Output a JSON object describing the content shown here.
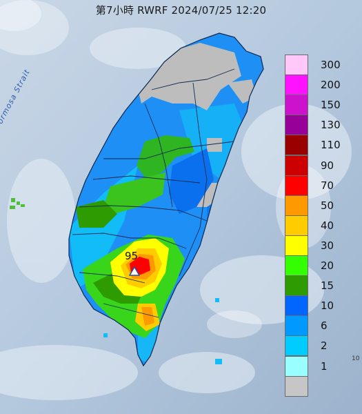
{
  "title": "第7小時  RWRF 2024/07/25 12:20",
  "strait_label": "Formosa Strait",
  "peak": {
    "value": "95",
    "marker": "triangle-marker-icon"
  },
  "corner_text": "10",
  "legend": [
    {
      "label": "300",
      "color": "#ffc8f8"
    },
    {
      "label": "200",
      "color": "#ff12ff"
    },
    {
      "label": "150",
      "color": "#cc12cc"
    },
    {
      "label": "130",
      "color": "#98009a"
    },
    {
      "label": "110",
      "color": "#9b0000"
    },
    {
      "label": "90",
      "color": "#cc0000"
    },
    {
      "label": "70",
      "color": "#fe0000"
    },
    {
      "label": "50",
      "color": "#ff9900"
    },
    {
      "label": "40",
      "color": "#ffcc00"
    },
    {
      "label": "30",
      "color": "#ffff00"
    },
    {
      "label": "20",
      "color": "#33ff00"
    },
    {
      "label": "15",
      "color": "#2e9b00"
    },
    {
      "label": "10",
      "color": "#0066ff"
    },
    {
      "label": "6",
      "color": "#0099ff"
    },
    {
      "label": "2",
      "color": "#00ccff"
    },
    {
      "label": "1",
      "color": "#99ffff"
    },
    {
      "label": "",
      "color": "#c6c6c6"
    }
  ]
}
